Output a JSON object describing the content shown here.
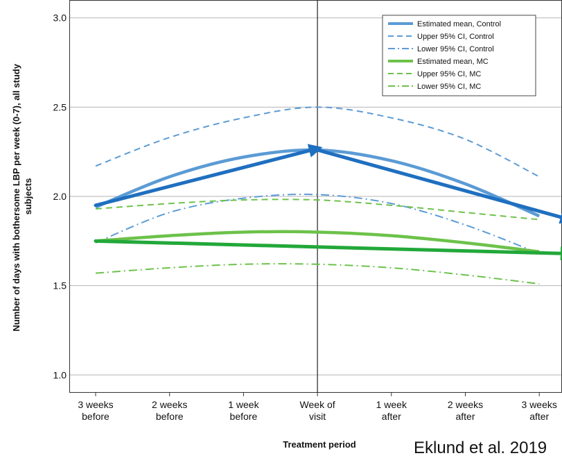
{
  "chart_data": {
    "type": "line",
    "xlabel": "Treatment period",
    "ylabel_lines": [
      "Number of days with bothersome LBP per week (0-7), all study",
      "subjects"
    ],
    "categories": [
      [
        "3 weeks",
        "before"
      ],
      [
        "2 weeks",
        "before"
      ],
      [
        "1 week",
        "before"
      ],
      [
        "Week of",
        "visit"
      ],
      [
        "1 week",
        "after"
      ],
      [
        "2 weeks",
        "after"
      ],
      [
        "3 weeks",
        "after"
      ]
    ],
    "ylim": [
      0.9,
      3.1
    ],
    "yticks": [
      "1.0",
      "1.5",
      "2.0",
      "2.5",
      "3.0"
    ],
    "grid": true,
    "legend_position": "top-right",
    "series": [
      {
        "name": "Estimated mean, Control",
        "style": "solid",
        "color": "#5b9bd5",
        "values": [
          1.94,
          2.11,
          2.22,
          2.26,
          2.2,
          2.07,
          1.89
        ]
      },
      {
        "name": "Upper 95% CI, Control",
        "style": "dashed",
        "color": "#5b9bd5",
        "values": [
          2.17,
          2.33,
          2.44,
          2.5,
          2.44,
          2.32,
          2.11
        ]
      },
      {
        "name": "Lower 95% CI, Control",
        "style": "dashdot",
        "color": "#5b9bd5",
        "values": [
          1.74,
          1.91,
          1.99,
          2.01,
          1.96,
          1.84,
          1.68
        ]
      },
      {
        "name": "Estimated mean, MC",
        "style": "solid",
        "color": "#6cc24a",
        "values": [
          1.75,
          1.78,
          1.8,
          1.8,
          1.78,
          1.74,
          1.69
        ]
      },
      {
        "name": "Upper 95% CI, MC",
        "style": "dashed",
        "color": "#6cc24a",
        "values": [
          1.93,
          1.96,
          1.98,
          1.98,
          1.95,
          1.91,
          1.87
        ]
      },
      {
        "name": "Lower 95% CI, MC",
        "style": "dashdot",
        "color": "#6cc24a",
        "values": [
          1.57,
          1.6,
          1.62,
          1.62,
          1.6,
          1.56,
          1.51
        ]
      }
    ],
    "vertical_reference_category": 3,
    "annotations": [
      {
        "type": "arrow",
        "color": "#1f6fc0",
        "from": [
          0,
          1.95
        ],
        "to": [
          3,
          2.26
        ]
      },
      {
        "type": "arrow",
        "color": "#1f6fc0",
        "from": [
          3,
          2.26
        ],
        "to": [
          6.4,
          1.88
        ]
      },
      {
        "type": "arrow",
        "color": "#22a83a",
        "from": [
          0,
          1.75
        ],
        "to": [
          6.4,
          1.68
        ]
      }
    ]
  },
  "citation": "Eklund et al. 2019"
}
